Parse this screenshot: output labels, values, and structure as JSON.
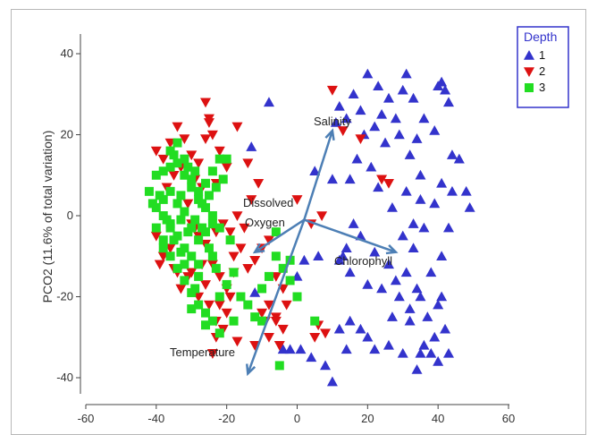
{
  "chart_data": {
    "type": "scatter",
    "ylabel": "PCO2 (11.6% of total variation)",
    "xlabel": "",
    "xlim": [
      -60,
      60
    ],
    "ylim": [
      -45,
      42
    ],
    "xticks": [
      -60,
      -40,
      -20,
      0,
      20,
      40,
      60
    ],
    "yticks": [
      40,
      20,
      0,
      -20,
      -40
    ],
    "grid": false,
    "legend": {
      "title": "Depth",
      "placement": "top-right",
      "entries": [
        {
          "label": "1",
          "marker": "triangle-up",
          "color": "#3333cc"
        },
        {
          "label": "2",
          "marker": "triangle-down",
          "color": "#dd1111"
        },
        {
          "label": "3",
          "marker": "square",
          "color": "#22dd22"
        }
      ]
    },
    "series": [
      {
        "name": "1",
        "marker": "triangle-up",
        "color": "#3333cc",
        "points": [
          [
            -13,
            17
          ],
          [
            -12,
            -19
          ],
          [
            -8,
            28
          ],
          [
            -4,
            -33
          ],
          [
            -2,
            -33
          ],
          [
            1,
            -33
          ],
          [
            4,
            -35
          ],
          [
            8,
            -37
          ],
          [
            10,
            -41
          ],
          [
            12,
            -28
          ],
          [
            14,
            -33
          ],
          [
            15,
            -26
          ],
          [
            18,
            -28
          ],
          [
            20,
            -30
          ],
          [
            22,
            -33
          ],
          [
            20,
            35
          ],
          [
            23,
            32
          ],
          [
            26,
            29
          ],
          [
            24,
            25
          ],
          [
            28,
            24
          ],
          [
            30,
            31
          ],
          [
            33,
            29
          ],
          [
            31,
            35
          ],
          [
            34,
            19
          ],
          [
            36,
            24
          ],
          [
            22,
            22
          ],
          [
            25,
            18
          ],
          [
            29,
            20
          ],
          [
            32,
            15
          ],
          [
            35,
            10
          ],
          [
            23,
            7
          ],
          [
            27,
            2
          ],
          [
            31,
            6
          ],
          [
            35,
            4
          ],
          [
            33,
            -2
          ],
          [
            36,
            -3
          ],
          [
            39,
            3
          ],
          [
            43,
            -3
          ],
          [
            40,
            32
          ],
          [
            41,
            33
          ],
          [
            42,
            31
          ],
          [
            43,
            28
          ],
          [
            39,
            21
          ],
          [
            44,
            15
          ],
          [
            46,
            14
          ],
          [
            41,
            8
          ],
          [
            44,
            6
          ],
          [
            48,
            6
          ],
          [
            49,
            2
          ],
          [
            30,
            -5
          ],
          [
            26,
            -12
          ],
          [
            28,
            -16
          ],
          [
            29,
            -20
          ],
          [
            27,
            -25
          ],
          [
            31,
            -14
          ],
          [
            32,
            -23
          ],
          [
            34,
            -18
          ],
          [
            35,
            -20
          ],
          [
            33,
            -8
          ],
          [
            38,
            -14
          ],
          [
            37,
            -25
          ],
          [
            40,
            -22
          ],
          [
            41,
            -10
          ],
          [
            38,
            -34
          ],
          [
            36,
            -32
          ],
          [
            39,
            -30
          ],
          [
            34,
            -38
          ],
          [
            35,
            -34
          ],
          [
            30,
            -34
          ],
          [
            32,
            -26
          ],
          [
            42,
            -28
          ],
          [
            43,
            -34
          ],
          [
            26,
            -32
          ],
          [
            40,
            -36
          ],
          [
            41,
            -20
          ],
          [
            12,
            -11
          ],
          [
            14,
            -8
          ],
          [
            20,
            -17
          ],
          [
            18,
            -5
          ],
          [
            16,
            -2
          ],
          [
            13,
            -10
          ],
          [
            15,
            9
          ],
          [
            17,
            14
          ],
          [
            19,
            20
          ],
          [
            21,
            12
          ],
          [
            16,
            30
          ],
          [
            18,
            26
          ],
          [
            12,
            27
          ],
          [
            14,
            24
          ],
          [
            10,
            9
          ],
          [
            6,
            -10
          ],
          [
            2,
            -11
          ],
          [
            5,
            11
          ],
          [
            0,
            -15
          ],
          [
            11,
            23
          ],
          [
            24,
            -18
          ],
          [
            15,
            -14
          ],
          [
            22,
            -9
          ]
        ]
      },
      {
        "name": "2",
        "marker": "triangle-down",
        "color": "#dd1111",
        "points": [
          [
            -40,
            16
          ],
          [
            -38,
            14
          ],
          [
            -36,
            18
          ],
          [
            -34,
            22
          ],
          [
            -32,
            19
          ],
          [
            -30,
            15
          ],
          [
            -28,
            13
          ],
          [
            -26,
            19
          ],
          [
            -25,
            23
          ],
          [
            -24,
            20
          ],
          [
            -26,
            28
          ],
          [
            -25,
            24
          ],
          [
            -22,
            16
          ],
          [
            -20,
            12
          ],
          [
            -23,
            8
          ],
          [
            -27,
            7
          ],
          [
            -29,
            9
          ],
          [
            -31,
            3
          ],
          [
            -33,
            12
          ],
          [
            -35,
            10
          ],
          [
            -37,
            7
          ],
          [
            -30,
            -2
          ],
          [
            -28,
            -5
          ],
          [
            -26,
            -7
          ],
          [
            -23,
            -4
          ],
          [
            -21,
            -2
          ],
          [
            -19,
            -4
          ],
          [
            -24,
            -12
          ],
          [
            -22,
            -15
          ],
          [
            -20,
            -18
          ],
          [
            -26,
            -17
          ],
          [
            -28,
            -20
          ],
          [
            -25,
            -22
          ],
          [
            -23,
            -26
          ],
          [
            -21,
            -28
          ],
          [
            -18,
            -10
          ],
          [
            -16,
            -8
          ],
          [
            -14,
            -13
          ],
          [
            -12,
            -11
          ],
          [
            -10,
            -8
          ],
          [
            -15,
            -3
          ],
          [
            -17,
            0
          ],
          [
            -13,
            4
          ],
          [
            -11,
            8
          ],
          [
            -14,
            13
          ],
          [
            -17,
            22
          ],
          [
            -8,
            -6
          ],
          [
            -6,
            -15
          ],
          [
            -4,
            -18
          ],
          [
            -8,
            -22
          ],
          [
            -10,
            -24
          ],
          [
            -6,
            -25
          ],
          [
            -4,
            -28
          ],
          [
            -5,
            -32
          ],
          [
            -9,
            -26
          ],
          [
            -40,
            -5
          ],
          [
            -38,
            -10
          ],
          [
            -36,
            -8
          ],
          [
            -39,
            -12
          ],
          [
            -35,
            -13
          ],
          [
            -30,
            -14
          ],
          [
            -27,
            -12
          ],
          [
            -33,
            -18
          ],
          [
            -31,
            -15
          ],
          [
            -23,
            -30
          ],
          [
            -24,
            -34
          ],
          [
            -22,
            -22
          ],
          [
            -20,
            -24
          ],
          [
            -17,
            -31
          ],
          [
            -12,
            -32
          ],
          [
            -8,
            -30
          ],
          [
            -6,
            -26
          ],
          [
            -3,
            -22
          ],
          [
            -18,
            -14
          ],
          [
            0,
            4
          ],
          [
            4,
            -2
          ],
          [
            7,
            0
          ],
          [
            10,
            31
          ],
          [
            13,
            21
          ],
          [
            18,
            19
          ],
          [
            24,
            9
          ],
          [
            26,
            8
          ],
          [
            6,
            -27
          ],
          [
            5,
            -30
          ],
          [
            8,
            -29
          ],
          [
            -29,
            -3
          ],
          [
            -19,
            -20
          ],
          [
            -34,
            -14
          ]
        ]
      },
      {
        "name": "3",
        "marker": "square",
        "color": "#22dd22",
        "points": [
          [
            -42,
            6
          ],
          [
            -40,
            2
          ],
          [
            -38,
            0
          ],
          [
            -36,
            -2
          ],
          [
            -34,
            -5
          ],
          [
            -32,
            -8
          ],
          [
            -30,
            -10
          ],
          [
            -28,
            -12
          ],
          [
            -40,
            10
          ],
          [
            -38,
            11
          ],
          [
            -36,
            12
          ],
          [
            -34,
            13
          ],
          [
            -32,
            10
          ],
          [
            -30,
            7
          ],
          [
            -28,
            6
          ],
          [
            -26,
            8
          ],
          [
            -24,
            11
          ],
          [
            -22,
            14
          ],
          [
            -38,
            4
          ],
          [
            -36,
            6
          ],
          [
            -34,
            3
          ],
          [
            -32,
            1
          ],
          [
            -30,
            -3
          ],
          [
            -28,
            -6
          ],
          [
            -26,
            -4
          ],
          [
            -24,
            -2
          ],
          [
            -36,
            16
          ],
          [
            -34,
            18
          ],
          [
            -32,
            14
          ],
          [
            -30,
            9
          ],
          [
            -28,
            4
          ],
          [
            -26,
            2
          ],
          [
            -24,
            0
          ],
          [
            -22,
            -3
          ],
          [
            -38,
            -6
          ],
          [
            -36,
            -10
          ],
          [
            -34,
            -13
          ],
          [
            -32,
            -16
          ],
          [
            -30,
            -19
          ],
          [
            -28,
            -22
          ],
          [
            -26,
            -24
          ],
          [
            -24,
            -26
          ],
          [
            -22,
            -20
          ],
          [
            -20,
            -17
          ],
          [
            -18,
            -14
          ],
          [
            -16,
            -20
          ],
          [
            -14,
            -22
          ],
          [
            -12,
            -25
          ],
          [
            -10,
            -18
          ],
          [
            -8,
            -15
          ],
          [
            -6,
            -10
          ],
          [
            -4,
            -13
          ],
          [
            -2,
            -16
          ],
          [
            0,
            -20
          ],
          [
            -35,
            -6
          ],
          [
            -33,
            -9
          ],
          [
            -31,
            -4
          ],
          [
            -29,
            -1
          ],
          [
            -27,
            3
          ],
          [
            -25,
            5
          ],
          [
            -23,
            7
          ],
          [
            -21,
            9
          ],
          [
            -20,
            14
          ],
          [
            -30,
            -23
          ],
          [
            -26,
            -27
          ],
          [
            -22,
            -29
          ],
          [
            -18,
            -26
          ],
          [
            -5,
            -37
          ],
          [
            5,
            -26
          ],
          [
            -24,
            -10
          ],
          [
            -28,
            -15
          ],
          [
            -32,
            -12
          ],
          [
            -40,
            -3
          ],
          [
            -38,
            -8
          ],
          [
            -33,
            5
          ],
          [
            -31,
            12
          ],
          [
            -35,
            15
          ],
          [
            -29,
            11
          ],
          [
            -25,
            -8
          ],
          [
            -19,
            -6
          ],
          [
            -37,
            -1
          ],
          [
            -39,
            5
          ],
          [
            -41,
            3
          ],
          [
            -36,
            -3
          ],
          [
            -33,
            -1
          ],
          [
            -27,
            -3
          ],
          [
            -23,
            -13
          ],
          [
            -29,
            -18
          ],
          [
            -2,
            -11
          ],
          [
            -6,
            -4
          ],
          [
            -10,
            -26
          ]
        ]
      }
    ],
    "vectors": [
      {
        "label": "Salinity",
        "from": [
          2,
          -1
        ],
        "to": [
          10,
          21
        ]
      },
      {
        "label": "Dissolved Oxygen",
        "from": [
          2,
          -1
        ],
        "to": [
          -12,
          -9
        ]
      },
      {
        "label": "Chlorophyll",
        "from": [
          2,
          -1
        ],
        "to": [
          28,
          -9
        ]
      },
      {
        "label": "Temperature",
        "from": [
          2,
          -1
        ],
        "to": [
          -14,
          -39
        ]
      }
    ],
    "vector_label_lines": {
      "salinity": [
        "Salinity"
      ],
      "dissolved_oxygen": [
        "Dissolved",
        "Oxygen"
      ],
      "chlorophyll": [
        "Chlorophyll"
      ],
      "temperature": [
        "Temperature"
      ]
    },
    "colors": {
      "vector": "#4d7fb5",
      "legend_title": "#3333cc",
      "axis": "#444444"
    }
  }
}
